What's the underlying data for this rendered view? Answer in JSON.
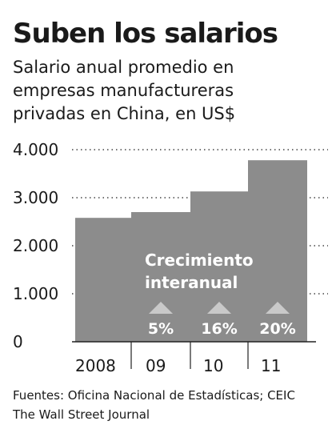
{
  "header": {
    "title": "Suben los salarios",
    "subtitle": "Salario anual promedio en\nempresas manufactureras\nprivadas en China, en US$"
  },
  "chart_data": {
    "type": "bar",
    "categories": [
      "2008",
      "09",
      "10",
      "11"
    ],
    "values": [
      2580,
      2700,
      3130,
      3780
    ],
    "title": "",
    "xlabel": "",
    "ylabel": "",
    "ylim": [
      0,
      4000
    ],
    "yticks": [
      0,
      1000,
      2000,
      3000,
      4000
    ],
    "ytick_labels": [
      "0",
      "1.000",
      "2.000",
      "3.000",
      "4.000"
    ],
    "grid": true,
    "bar_color": "#8c8c8c",
    "annotation": {
      "lines": [
        "Crecimiento",
        "interanual"
      ]
    },
    "growth": [
      {
        "category": "09",
        "label": "5%"
      },
      {
        "category": "10",
        "label": "16%"
      },
      {
        "category": "11",
        "label": "20%"
      }
    ]
  },
  "footer": {
    "sources": "Fuentes: Oficina Nacional de Estadísticas; CEIC",
    "publisher": "The Wall Street Journal"
  }
}
